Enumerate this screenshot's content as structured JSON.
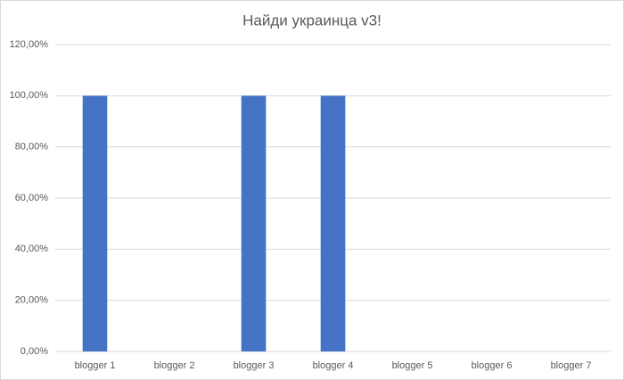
{
  "chart_data": {
    "type": "bar",
    "title": "Найди украинца v3!",
    "categories": [
      "blogger 1",
      "blogger 2",
      "blogger 3",
      "blogger 4",
      "blogger 5",
      "blogger 6",
      "blogger 7"
    ],
    "values": [
      100,
      0,
      100,
      100,
      0,
      0,
      0
    ],
    "color": "#4472c4",
    "ylim": [
      0,
      120
    ],
    "yticks": [
      {
        "value": 0,
        "label": "0,00%"
      },
      {
        "value": 20,
        "label": "20,00%"
      },
      {
        "value": 40,
        "label": "40,00%"
      },
      {
        "value": 60,
        "label": "60,00%"
      },
      {
        "value": 80,
        "label": "80,00%"
      },
      {
        "value": 100,
        "label": "100,00%"
      },
      {
        "value": 120,
        "label": "120,00%"
      }
    ],
    "grid": true
  }
}
